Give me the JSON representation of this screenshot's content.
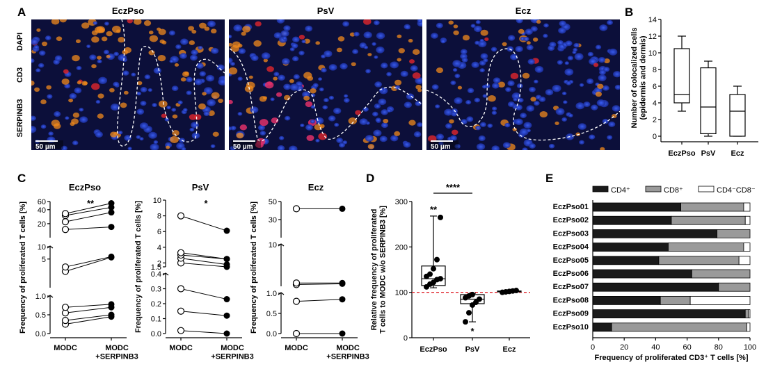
{
  "panels": {
    "a": "A",
    "b": "B",
    "c": "C",
    "d": "D",
    "e": "E"
  },
  "panelA": {
    "images": [
      {
        "title": "EczPso",
        "scale": "50 µm"
      },
      {
        "title": "PsV",
        "scale": "50 µm"
      },
      {
        "title": "Ecz",
        "scale": "50 µm"
      }
    ],
    "channels": [
      {
        "label": "DAPI",
        "color": "#3a56d6"
      },
      {
        "label": "CD3",
        "color": "#e0252d"
      },
      {
        "label": "SERPINB3",
        "color": "#f08a1c"
      }
    ]
  },
  "chart_data": [
    {
      "id": "B",
      "type": "box",
      "categories": [
        "EczPso",
        "PsV",
        "Ecz"
      ],
      "boxes": [
        {
          "min": 3,
          "q1": 4,
          "median": 5,
          "q3": 10.5,
          "max": 12
        },
        {
          "min": 0,
          "q1": 0.3,
          "median": 3.5,
          "q3": 8.2,
          "max": 9
        },
        {
          "min": 0,
          "q1": 0,
          "median": 3,
          "q3": 5,
          "max": 6
        }
      ],
      "ylabel": "Number of colocalized cells\n(epidermis and dermis)",
      "ylim": [
        0,
        14
      ],
      "yticks": [
        "0",
        "2",
        "4",
        "6",
        "8",
        "10",
        "12",
        "14"
      ]
    },
    {
      "id": "C1",
      "type": "paired-dot",
      "title": "EczPso",
      "significance": "**",
      "ylabel": "Frequency of proliferated T cells [%]",
      "xticks": [
        "MODC",
        "MODC\n+SERPINB3"
      ],
      "yticks": [
        "0.0",
        "0.5",
        "1.0",
        "5",
        "10",
        "20",
        "40",
        "60"
      ],
      "pairs": [
        [
          0.25,
          0.45
        ],
        [
          0.35,
          0.5
        ],
        [
          0.55,
          0.7
        ],
        [
          0.7,
          0.78
        ],
        [
          2.5,
          5.5
        ],
        [
          3.2,
          5.7
        ],
        [
          15,
          17
        ],
        [
          22,
          35
        ],
        [
          30,
          45
        ],
        [
          33,
          55
        ]
      ]
    },
    {
      "id": "C2",
      "type": "paired-dot",
      "title": "PsV",
      "significance": "*",
      "ylabel": "Frequency of proliferated T cells [%]",
      "xticks": [
        "MODC",
        "MODC\n+SERPINB3"
      ],
      "yticks": [
        "0.0",
        "0.1",
        "0.2",
        "0.3",
        "0.4",
        "1.5",
        "2",
        "4",
        "6",
        "8",
        "10"
      ],
      "pairs": [
        [
          0.02,
          0.0
        ],
        [
          0.15,
          0.12
        ],
        [
          0.3,
          0.23
        ],
        [
          2.0,
          1.5
        ],
        [
          2.6,
          1.8
        ],
        [
          3.0,
          2.5
        ],
        [
          3.3,
          2.5
        ],
        [
          8.0,
          6.1
        ]
      ]
    },
    {
      "id": "C3",
      "type": "paired-dot",
      "title": "Ecz",
      "ylabel": "Frequency of proliferated T cells [%]",
      "xticks": [
        "MODC",
        "MODC\n+SERPINB3"
      ],
      "yticks": [
        "0.0",
        "0.5",
        "1.0",
        "10",
        "30",
        "50"
      ],
      "pairs": [
        [
          0.0,
          0.0
        ],
        [
          0.8,
          0.85
        ],
        [
          1.1,
          1.15
        ],
        [
          1.2,
          1.2
        ],
        [
          42,
          42
        ]
      ]
    },
    {
      "id": "D",
      "type": "box-dot",
      "categories": [
        "EczPso",
        "PsV",
        "Ecz"
      ],
      "ylabel": "Relative frequency of proliferated\nT cells to MODC w/o SERPINB3 [%]",
      "ylim": [
        0,
        300
      ],
      "yticks": [
        "0",
        "100",
        "200",
        "300"
      ],
      "reference_line": 100,
      "boxes": [
        {
          "min": 110,
          "q1": 115,
          "median": 130,
          "q3": 158,
          "max": 268,
          "points": [
            112,
            118,
            122,
            128,
            130,
            135,
            140,
            152,
            172,
            265
          ]
        },
        {
          "min": 35,
          "q1": 75,
          "median": 85,
          "q3": 95,
          "max": 98,
          "points": [
            35,
            55,
            72,
            78,
            85,
            88,
            92,
            95
          ]
        },
        {
          "min": 100,
          "q1": 101,
          "median": 102,
          "q3": 103,
          "max": 105,
          "points": [
            100,
            101,
            102,
            103,
            104
          ]
        }
      ],
      "significance": {
        "top": "****",
        "EczPso": "**",
        "PsV": "*"
      }
    },
    {
      "id": "E",
      "type": "stacked-bar-horizontal",
      "legend": [
        "CD4⁺",
        "CD8⁺",
        "CD4⁻CD8⁻"
      ],
      "colors": [
        "#1a1a1a",
        "#9a9a9a",
        "#ffffff"
      ],
      "categories": [
        "EczPso01",
        "EczPso02",
        "EczPso03",
        "EczPso04",
        "EczPso05",
        "EczPso06",
        "EczPso07",
        "EczPso08",
        "EczPso09",
        "EczPso10"
      ],
      "series": [
        {
          "name": "CD4⁺",
          "values": [
            56,
            50,
            79,
            48,
            42,
            63,
            80,
            43,
            97,
            12
          ]
        },
        {
          "name": "CD8⁺",
          "values": [
            40,
            47,
            21,
            48,
            51,
            37,
            20,
            19,
            2,
            86
          ]
        },
        {
          "name": "CD4⁻CD8⁻",
          "values": [
            4,
            3,
            0,
            4,
            7,
            0,
            0,
            38,
            1,
            2
          ]
        }
      ],
      "xlabel": "Frequency of proliferated CD3⁺ T cells [%]",
      "xlim": [
        0,
        100
      ],
      "xticks": [
        "0",
        "20",
        "40",
        "60",
        "80",
        "100"
      ]
    }
  ]
}
